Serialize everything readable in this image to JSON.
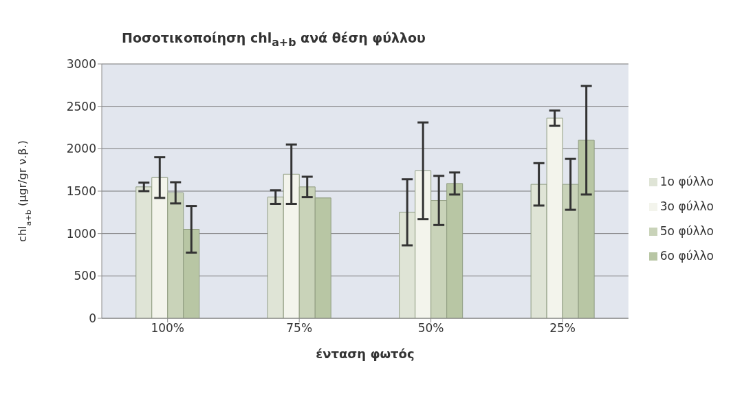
{
  "chart_data": {
    "type": "bar",
    "title": "Ποσοτικοποίηση chl$_{a+b}$ ανά θέση φύλλου",
    "xlabel": "ένταση φωτός",
    "ylabel": "chl$_{a+b}$ (μgr/gr ν.β.)",
    "categories": [
      "100%",
      "75%",
      "50%",
      "25%"
    ],
    "series": [
      {
        "name": "1ο φύλλο",
        "color": "#dfe4d6",
        "values": [
          1550,
          1430,
          1250,
          1580
        ],
        "errors": [
          50,
          80,
          390,
          250
        ]
      },
      {
        "name": "3ο φύλλο",
        "color": "#f3f4ec",
        "values": [
          1660,
          1700,
          1740,
          2360
        ],
        "errors": [
          240,
          350,
          570,
          90
        ]
      },
      {
        "name": "5ο φύλλο",
        "color": "#c9d3b9",
        "values": [
          1480,
          1550,
          1390,
          1580
        ],
        "errors": [
          125,
          120,
          290,
          300
        ]
      },
      {
        "name": "6ο φύλλο",
        "color": "#b8c6a4",
        "values": [
          1050,
          1420,
          1590,
          2100
        ],
        "errors": [
          275,
          null,
          130,
          640
        ]
      }
    ],
    "ylim": [
      0,
      3000
    ],
    "yticks": [
      0,
      500,
      1000,
      1500,
      2000,
      2500,
      3000
    ],
    "grid": "y",
    "legend": "right"
  }
}
